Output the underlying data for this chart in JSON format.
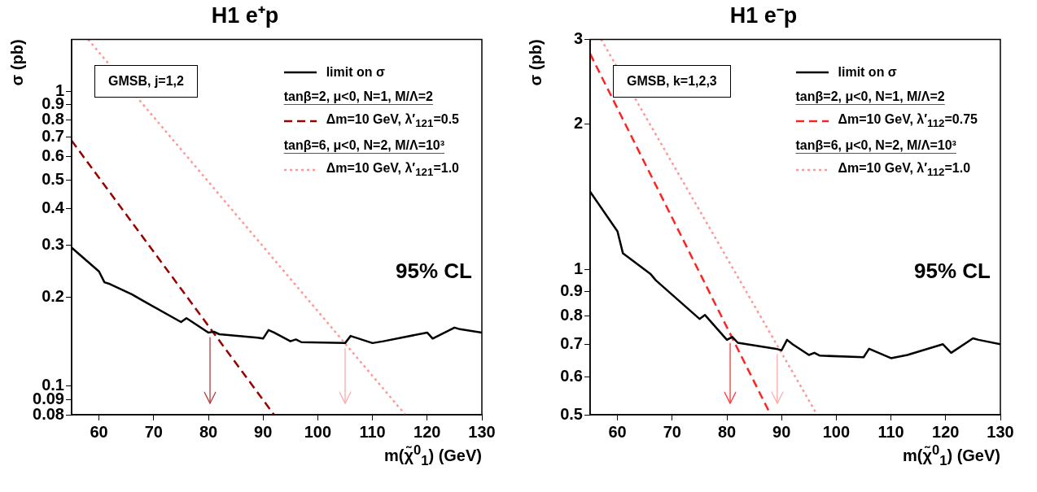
{
  "chart_data": [
    {
      "type": "line",
      "title": "H1 e⁺p",
      "xlabel": "m(χ̃$^{0}$$_{1}$) (GeV)",
      "ylabel": "σ (pb)",
      "log": "y",
      "grid": false,
      "legend": "top right",
      "xlim": [
        55,
        130
      ],
      "xticks": [
        60,
        70,
        80,
        90,
        100,
        110,
        120,
        130
      ],
      "ylim": [
        0.08,
        1.5
      ],
      "yticks": [
        0.08,
        0.09,
        0.1,
        0.2,
        0.3,
        0.4,
        0.5,
        0.6,
        0.7,
        0.8,
        0.9,
        1
      ],
      "annotations": [
        "GMSB, j=1,2",
        "tanβ=2, μ<0, N=1, M/Λ=2",
        "tanβ=6, μ<0, N=2, M/Λ=10³",
        "95% CL"
      ],
      "ref_lines": [
        {
          "axis": "x",
          "value": 80.3,
          "color": "#b03a3a"
        },
        {
          "axis": "x",
          "value": 105,
          "color": "#ffaaaa"
        }
      ],
      "series": [
        {
          "name": "limit on σ",
          "color": "#000000",
          "line_style": "solid",
          "x": [
            55,
            60,
            61,
            62,
            66,
            68,
            75,
            76,
            80,
            81,
            82,
            89,
            90,
            91,
            92,
            95,
            96,
            97,
            105,
            106,
            110,
            112,
            120,
            121,
            125,
            126,
            130
          ],
          "values": [
            0.295,
            0.245,
            0.225,
            0.222,
            0.205,
            0.195,
            0.165,
            0.17,
            0.152,
            0.153,
            0.15,
            0.146,
            0.145,
            0.155,
            0.152,
            0.142,
            0.144,
            0.141,
            0.14,
            0.148,
            0.14,
            0.142,
            0.152,
            0.145,
            0.158,
            0.156,
            0.152
          ]
        },
        {
          "name": "Δm=10 GeV, λ′$_{121}$=0.5",
          "color": "#990000",
          "line_style": "dashed",
          "x": [
            55,
            92
          ],
          "values": [
            0.68,
            0.08
          ]
        },
        {
          "name": "Δm=10 GeV, λ′$_{121}$=1.0",
          "color": "#ff9999",
          "line_style": "dotted",
          "x": [
            58,
            116
          ],
          "values": [
            1.5,
            0.08
          ]
        }
      ]
    },
    {
      "type": "line",
      "title": "H1 e⁻p",
      "xlabel": "m(χ̃$^{0}$$_{1}$) (GeV)",
      "ylabel": "σ (pb)",
      "log": "y",
      "grid": false,
      "legend": "top right",
      "xlim": [
        55,
        130
      ],
      "xticks": [
        60,
        70,
        80,
        90,
        100,
        110,
        120,
        130
      ],
      "ylim": [
        0.5,
        3
      ],
      "yticks": [
        0.5,
        0.6,
        0.7,
        0.8,
        0.9,
        1,
        2,
        3
      ],
      "annotations": [
        "GMSB, k=1,2,3",
        "tanβ=2, μ<0, N=1, M/Λ=2",
        "tanβ=6, μ<0, N=2, M/Λ=10³",
        "95% CL"
      ],
      "ref_lines": [
        {
          "axis": "x",
          "value": 80.6,
          "color": "#ff3333"
        },
        {
          "axis": "x",
          "value": 89.2,
          "color": "#ffaaaa"
        }
      ],
      "series": [
        {
          "name": "limit on σ",
          "color": "#000000",
          "line_style": "solid",
          "x": [
            55,
            60,
            61,
            62,
            66,
            67,
            75,
            76,
            80,
            81,
            82,
            89,
            90,
            91,
            92,
            95,
            96,
            97,
            105,
            106,
            110,
            113,
            119.5,
            121,
            125,
            126,
            130
          ],
          "values": [
            1.45,
            1.2,
            1.08,
            1.06,
            0.98,
            0.95,
            0.79,
            0.805,
            0.715,
            0.725,
            0.705,
            0.685,
            0.68,
            0.715,
            0.7,
            0.665,
            0.672,
            0.663,
            0.658,
            0.685,
            0.655,
            0.665,
            0.7,
            0.672,
            0.72,
            0.715,
            0.7
          ]
        },
        {
          "name": "Δm=10 GeV, λ′$_{112}$=0.75",
          "color": "#ff2222",
          "line_style": "dashed",
          "x": [
            55,
            88
          ],
          "values": [
            2.8,
            0.5
          ]
        },
        {
          "name": "Δm=10 GeV, λ′$_{112}$=1.0",
          "color": "#ff9999",
          "line_style": "dotted",
          "x": [
            57,
            96.5
          ],
          "values": [
            3,
            0.5
          ]
        }
      ]
    }
  ]
}
